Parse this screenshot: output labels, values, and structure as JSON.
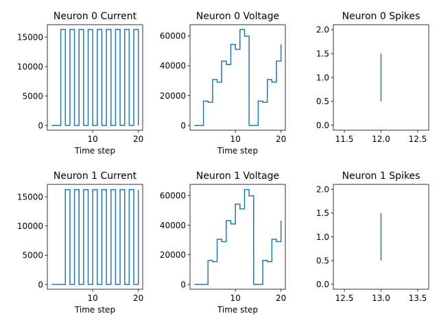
{
  "color": "#1f77b4",
  "chart_data": [
    {
      "type": "line",
      "title": "Neuron 0 Current",
      "xlabel": "Time step",
      "ylabel": "",
      "step": true,
      "xlim": [
        0.05,
        20.95
      ],
      "ylim": [
        -815,
        17115
      ],
      "xticks": [
        10,
        20
      ],
      "xtick_labels": [
        "10",
        "20"
      ],
      "yticks": [
        0,
        5000,
        10000,
        15000
      ],
      "ytick_labels": [
        "0",
        "5000",
        "10000",
        "15000"
      ],
      "x": [
        1,
        2,
        3,
        4,
        5,
        6,
        7,
        8,
        9,
        10,
        11,
        12,
        13,
        14,
        15,
        16,
        17,
        18,
        19,
        20
      ],
      "y": [
        0,
        0,
        16300,
        0,
        16300,
        0,
        16300,
        0,
        16300,
        0,
        16300,
        0,
        16300,
        0,
        16300,
        0,
        16300,
        0,
        16300,
        0
      ]
    },
    {
      "type": "line",
      "title": "Neuron 0 Voltage",
      "xlabel": "Time step",
      "ylabel": "",
      "step": true,
      "xlim": [
        0.05,
        20.95
      ],
      "ylim": [
        -3215,
        67515
      ],
      "xticks": [
        10,
        20
      ],
      "xtick_labels": [
        "10",
        "20"
      ],
      "yticks": [
        0,
        20000,
        40000,
        60000
      ],
      "ytick_labels": [
        "0",
        "20000",
        "40000",
        "60000"
      ],
      "x": [
        1,
        2,
        3,
        4,
        5,
        6,
        7,
        8,
        9,
        10,
        11,
        12,
        13,
        14,
        15,
        16,
        17,
        18,
        19,
        20
      ],
      "y": [
        0,
        0,
        16300,
        15500,
        30700,
        29000,
        43100,
        40800,
        54300,
        51000,
        64300,
        59800,
        0,
        0,
        16300,
        15500,
        30700,
        29000,
        43100,
        54300
      ]
    },
    {
      "type": "line",
      "title": "Neuron 0 Spikes",
      "xlabel": "",
      "ylabel": "",
      "xlim": [
        11.35,
        12.65
      ],
      "ylim": [
        -0.105,
        2.105
      ],
      "xticks": [
        11.5,
        12.0,
        12.5
      ],
      "xtick_labels": [
        "11.5",
        "12.0",
        "12.5"
      ],
      "yticks": [
        0.0,
        0.5,
        1.0,
        1.5,
        2.0
      ],
      "ytick_labels": [
        "0.0",
        "0.5",
        "1.0",
        "1.5",
        "2.0"
      ],
      "segments": [
        {
          "x": 12,
          "y0": 0.5,
          "y1": 1.5
        }
      ]
    },
    {
      "type": "line",
      "title": "Neuron 1 Current",
      "xlabel": "Time step",
      "ylabel": "",
      "step": true,
      "xlim": [
        0.05,
        20.95
      ],
      "ylim": [
        -815,
        17115
      ],
      "xticks": [
        10,
        20
      ],
      "xtick_labels": [
        "10",
        "20"
      ],
      "yticks": [
        0,
        5000,
        10000,
        15000
      ],
      "ytick_labels": [
        "0",
        "5000",
        "10000",
        "15000"
      ],
      "x": [
        1,
        2,
        3,
        4,
        5,
        6,
        7,
        8,
        9,
        10,
        11,
        12,
        13,
        14,
        15,
        16,
        17,
        18,
        19,
        20
      ],
      "y": [
        0,
        0,
        0,
        16200,
        0,
        16200,
        0,
        16200,
        0,
        16200,
        0,
        16200,
        0,
        16200,
        0,
        16200,
        0,
        16200,
        0,
        16200
      ]
    },
    {
      "type": "line",
      "title": "Neuron 1 Voltage",
      "xlabel": "Time step",
      "ylabel": "",
      "step": true,
      "xlim": [
        0.05,
        20.95
      ],
      "ylim": [
        -3215,
        67515
      ],
      "xticks": [
        10,
        20
      ],
      "xtick_labels": [
        "10",
        "20"
      ],
      "yticks": [
        0,
        20000,
        40000,
        60000
      ],
      "ytick_labels": [
        "0",
        "20000",
        "40000",
        "60000"
      ],
      "x": [
        1,
        2,
        3,
        4,
        5,
        6,
        7,
        8,
        9,
        10,
        11,
        12,
        13,
        14,
        15,
        16,
        17,
        18,
        19,
        20
      ],
      "y": [
        0,
        0,
        0,
        16200,
        15400,
        30500,
        28900,
        43000,
        40800,
        54200,
        51000,
        64000,
        59800,
        0,
        0,
        16200,
        15400,
        30500,
        28900,
        43000
      ]
    },
    {
      "type": "line",
      "title": "Neuron 1 Spikes",
      "xlabel": "",
      "ylabel": "",
      "xlim": [
        12.35,
        13.65
      ],
      "ylim": [
        -0.105,
        2.105
      ],
      "xticks": [
        12.5,
        13.0,
        13.5
      ],
      "xtick_labels": [
        "12.5",
        "13.0",
        "13.5"
      ],
      "yticks": [
        0.0,
        0.5,
        1.0,
        1.5,
        2.0
      ],
      "ytick_labels": [
        "0.0",
        "0.5",
        "1.0",
        "1.5",
        "2.0"
      ],
      "segments": [
        {
          "x": 13,
          "y0": 0.5,
          "y1": 1.5
        }
      ]
    }
  ]
}
